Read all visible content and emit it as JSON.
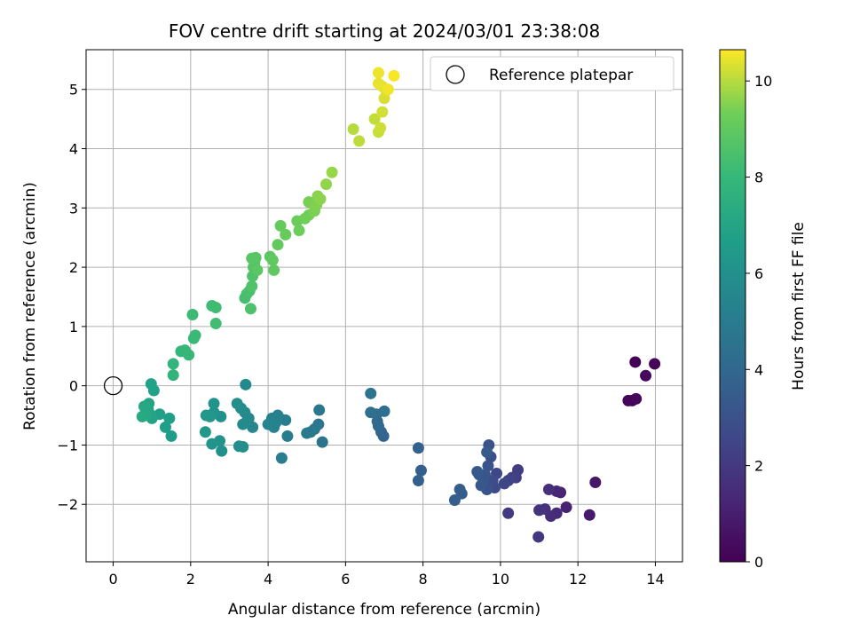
{
  "chart_data": {
    "type": "scatter",
    "title": "FOV centre drift starting at 2024/03/01 23:38:08",
    "xlabel": "Angular distance from reference (arcmin)",
    "ylabel": "Rotation from reference (arcmin)",
    "xlim": [
      -0.7,
      14.7
    ],
    "ylim": [
      -2.97,
      5.67
    ],
    "xticks": [
      0,
      2,
      4,
      6,
      8,
      10,
      12,
      14
    ],
    "yticks": [
      -2,
      -1,
      0,
      1,
      2,
      3,
      4,
      5
    ],
    "xtick_labels": [
      "0",
      "2",
      "4",
      "6",
      "8",
      "10",
      "12",
      "14"
    ],
    "ytick_labels": [
      "−2",
      "−1",
      "0",
      "1",
      "2",
      "3",
      "4",
      "5"
    ],
    "grid": true,
    "legend": {
      "placement": "top-right",
      "entries": [
        "Reference platepar"
      ]
    },
    "reference_point": {
      "name": "Reference platepar",
      "x": 0,
      "y": 0
    },
    "colorbar": {
      "label": "Hours from first FF file",
      "colormap": "viridis",
      "range": [
        0,
        10.65
      ],
      "ticks": [
        0,
        2,
        4,
        6,
        8,
        10
      ],
      "tick_labels": [
        "0",
        "2",
        "4",
        "6",
        "8",
        "10"
      ]
    },
    "points": [
      {
        "x": 13.3,
        "y": -0.25,
        "c": 0.1
      },
      {
        "x": 13.4,
        "y": -0.25,
        "c": 0.15
      },
      {
        "x": 13.5,
        "y": -0.22,
        "c": 0.2
      },
      {
        "x": 13.48,
        "y": 0.4,
        "c": 0.05
      },
      {
        "x": 13.75,
        "y": 0.17,
        "c": 0.25
      },
      {
        "x": 13.98,
        "y": 0.37,
        "c": 0.1
      },
      {
        "x": 12.45,
        "y": -1.63,
        "c": 0.7
      },
      {
        "x": 12.3,
        "y": -2.18,
        "c": 0.9
      },
      {
        "x": 11.7,
        "y": -2.05,
        "c": 1.1
      },
      {
        "x": 11.55,
        "y": -1.8,
        "c": 1.2
      },
      {
        "x": 11.45,
        "y": -1.78,
        "c": 1.3
      },
      {
        "x": 11.45,
        "y": -2.15,
        "c": 1.4
      },
      {
        "x": 11.3,
        "y": -2.2,
        "c": 1.5
      },
      {
        "x": 11.25,
        "y": -1.75,
        "c": 1.6
      },
      {
        "x": 11.15,
        "y": -2.08,
        "c": 1.7
      },
      {
        "x": 11.0,
        "y": -2.1,
        "c": 1.8
      },
      {
        "x": 10.98,
        "y": -2.55,
        "c": 1.9
      },
      {
        "x": 10.2,
        "y": -2.15,
        "c": 2.0
      },
      {
        "x": 10.45,
        "y": -1.42,
        "c": 2.1
      },
      {
        "x": 10.4,
        "y": -1.55,
        "c": 2.2
      },
      {
        "x": 10.3,
        "y": -1.55,
        "c": 2.3
      },
      {
        "x": 10.2,
        "y": -1.6,
        "c": 2.4
      },
      {
        "x": 10.1,
        "y": -1.65,
        "c": 2.5
      },
      {
        "x": 9.9,
        "y": -1.48,
        "c": 2.6
      },
      {
        "x": 9.85,
        "y": -1.72,
        "c": 2.7
      },
      {
        "x": 9.8,
        "y": -1.6,
        "c": 2.8
      },
      {
        "x": 9.75,
        "y": -1.2,
        "c": 2.9
      },
      {
        "x": 9.7,
        "y": -1.0,
        "c": 3.0
      },
      {
        "x": 9.68,
        "y": -1.35,
        "c": 3.05
      },
      {
        "x": 9.65,
        "y": -1.75,
        "c": 3.1
      },
      {
        "x": 9.6,
        "y": -1.5,
        "c": 3.15
      },
      {
        "x": 9.55,
        "y": -1.62,
        "c": 3.2
      },
      {
        "x": 9.5,
        "y": -1.68,
        "c": 3.25
      },
      {
        "x": 9.45,
        "y": -1.5,
        "c": 3.3
      },
      {
        "x": 9.4,
        "y": -1.45,
        "c": 3.35
      },
      {
        "x": 9.65,
        "y": -1.12,
        "c": 3.4
      },
      {
        "x": 9.0,
        "y": -1.82,
        "c": 3.45
      },
      {
        "x": 8.95,
        "y": -1.75,
        "c": 3.5
      },
      {
        "x": 8.82,
        "y": -1.93,
        "c": 3.55
      },
      {
        "x": 7.95,
        "y": -1.43,
        "c": 3.6
      },
      {
        "x": 7.88,
        "y": -1.6,
        "c": 3.65
      },
      {
        "x": 7.88,
        "y": -1.05,
        "c": 3.7
      },
      {
        "x": 6.98,
        "y": -0.85,
        "c": 3.8
      },
      {
        "x": 6.92,
        "y": -0.78,
        "c": 3.9
      },
      {
        "x": 6.85,
        "y": -0.68,
        "c": 4.0
      },
      {
        "x": 6.82,
        "y": -0.6,
        "c": 4.1
      },
      {
        "x": 6.8,
        "y": -0.48,
        "c": 4.2
      },
      {
        "x": 7.0,
        "y": -0.43,
        "c": 4.3
      },
      {
        "x": 6.65,
        "y": -0.45,
        "c": 4.4
      },
      {
        "x": 6.65,
        "y": -0.13,
        "c": 4.5
      },
      {
        "x": 5.4,
        "y": -0.95,
        "c": 4.6
      },
      {
        "x": 5.3,
        "y": -0.65,
        "c": 4.7
      },
      {
        "x": 5.32,
        "y": -0.41,
        "c": 4.75
      },
      {
        "x": 5.2,
        "y": -0.73,
        "c": 4.8
      },
      {
        "x": 5.1,
        "y": -0.78,
        "c": 4.85
      },
      {
        "x": 5.0,
        "y": -0.8,
        "c": 4.9
      },
      {
        "x": 4.5,
        "y": -0.85,
        "c": 5.0
      },
      {
        "x": 4.45,
        "y": -0.58,
        "c": 5.05
      },
      {
        "x": 4.35,
        "y": -1.22,
        "c": 5.1
      },
      {
        "x": 4.3,
        "y": -0.55,
        "c": 5.15
      },
      {
        "x": 4.25,
        "y": -0.5,
        "c": 5.2
      },
      {
        "x": 4.2,
        "y": -0.62,
        "c": 5.25
      },
      {
        "x": 4.15,
        "y": -0.7,
        "c": 5.3
      },
      {
        "x": 4.1,
        "y": -0.55,
        "c": 5.35
      },
      {
        "x": 4.0,
        "y": -0.65,
        "c": 5.4
      },
      {
        "x": 3.6,
        "y": -0.7,
        "c": 5.5
      },
      {
        "x": 3.5,
        "y": -0.55,
        "c": 5.55
      },
      {
        "x": 3.45,
        "y": -0.6,
        "c": 5.6
      },
      {
        "x": 3.42,
        "y": 0.02,
        "c": 5.65
      },
      {
        "x": 3.4,
        "y": -0.45,
        "c": 5.7
      },
      {
        "x": 3.35,
        "y": -0.65,
        "c": 5.75
      },
      {
        "x": 3.35,
        "y": -1.03,
        "c": 5.8
      },
      {
        "x": 3.3,
        "y": -0.38,
        "c": 5.85
      },
      {
        "x": 3.25,
        "y": -1.02,
        "c": 5.9
      },
      {
        "x": 3.2,
        "y": -0.3,
        "c": 5.95
      },
      {
        "x": 2.8,
        "y": -1.1,
        "c": 6.0
      },
      {
        "x": 2.78,
        "y": -0.52,
        "c": 6.05
      },
      {
        "x": 2.75,
        "y": -0.93,
        "c": 6.1
      },
      {
        "x": 2.6,
        "y": -0.3,
        "c": 6.15
      },
      {
        "x": 2.6,
        "y": -0.45,
        "c": 6.2
      },
      {
        "x": 2.55,
        "y": -0.98,
        "c": 6.25
      },
      {
        "x": 2.5,
        "y": -0.52,
        "c": 6.3
      },
      {
        "x": 2.4,
        "y": -0.5,
        "c": 6.35
      },
      {
        "x": 2.38,
        "y": -0.78,
        "c": 6.4
      },
      {
        "x": 1.5,
        "y": -0.85,
        "c": 6.6
      },
      {
        "x": 1.45,
        "y": -0.55,
        "c": 6.65
      },
      {
        "x": 1.35,
        "y": -0.7,
        "c": 6.7
      },
      {
        "x": 1.2,
        "y": -0.48,
        "c": 6.75
      },
      {
        "x": 1.05,
        "y": -0.08,
        "c": 6.8
      },
      {
        "x": 1.0,
        "y": -0.55,
        "c": 6.85
      },
      {
        "x": 0.98,
        "y": 0.03,
        "c": 6.9
      },
      {
        "x": 0.95,
        "y": -0.48,
        "c": 6.95
      },
      {
        "x": 0.92,
        "y": -0.3,
        "c": 7.0
      },
      {
        "x": 0.9,
        "y": -0.4,
        "c": 7.05
      },
      {
        "x": 0.85,
        "y": -0.45,
        "c": 7.1
      },
      {
        "x": 0.82,
        "y": -0.5,
        "c": 7.15
      },
      {
        "x": 0.8,
        "y": -0.35,
        "c": 7.2
      },
      {
        "x": 0.75,
        "y": -0.52,
        "c": 7.25
      },
      {
        "x": 1.55,
        "y": 0.18,
        "c": 7.8
      },
      {
        "x": 1.55,
        "y": 0.37,
        "c": 7.85
      },
      {
        "x": 1.75,
        "y": 0.58,
        "c": 7.9
      },
      {
        "x": 1.85,
        "y": 0.6,
        "c": 7.95
      },
      {
        "x": 1.95,
        "y": 0.52,
        "c": 8.0
      },
      {
        "x": 2.08,
        "y": 0.8,
        "c": 8.05
      },
      {
        "x": 2.12,
        "y": 0.85,
        "c": 8.1
      },
      {
        "x": 2.05,
        "y": 1.2,
        "c": 8.15
      },
      {
        "x": 2.55,
        "y": 1.35,
        "c": 8.2
      },
      {
        "x": 2.65,
        "y": 1.32,
        "c": 8.25
      },
      {
        "x": 2.65,
        "y": 1.05,
        "c": 8.3
      },
      {
        "x": 3.4,
        "y": 1.48,
        "c": 8.4
      },
      {
        "x": 3.45,
        "y": 1.55,
        "c": 8.45
      },
      {
        "x": 3.52,
        "y": 1.6,
        "c": 8.5
      },
      {
        "x": 3.55,
        "y": 1.3,
        "c": 8.55
      },
      {
        "x": 3.58,
        "y": 1.68,
        "c": 8.6
      },
      {
        "x": 3.6,
        "y": 1.85,
        "c": 8.65
      },
      {
        "x": 3.62,
        "y": 2.0,
        "c": 8.7
      },
      {
        "x": 3.65,
        "y": 2.08,
        "c": 8.75
      },
      {
        "x": 3.68,
        "y": 2.16,
        "c": 8.8
      },
      {
        "x": 3.58,
        "y": 2.15,
        "c": 8.82
      },
      {
        "x": 3.72,
        "y": 1.95,
        "c": 8.85
      },
      {
        "x": 4.05,
        "y": 2.18,
        "c": 8.9
      },
      {
        "x": 4.12,
        "y": 2.12,
        "c": 8.95
      },
      {
        "x": 4.15,
        "y": 1.95,
        "c": 9.0
      },
      {
        "x": 4.25,
        "y": 2.38,
        "c": 9.05
      },
      {
        "x": 4.32,
        "y": 2.7,
        "c": 9.1
      },
      {
        "x": 4.45,
        "y": 2.55,
        "c": 9.15
      },
      {
        "x": 4.75,
        "y": 2.78,
        "c": 9.2
      },
      {
        "x": 4.8,
        "y": 2.62,
        "c": 9.25
      },
      {
        "x": 4.95,
        "y": 2.82,
        "c": 9.3
      },
      {
        "x": 5.05,
        "y": 2.88,
        "c": 9.35
      },
      {
        "x": 5.05,
        "y": 3.1,
        "c": 9.4
      },
      {
        "x": 5.2,
        "y": 2.95,
        "c": 9.45
      },
      {
        "x": 5.25,
        "y": 3.05,
        "c": 9.5
      },
      {
        "x": 5.28,
        "y": 3.2,
        "c": 9.55
      },
      {
        "x": 5.35,
        "y": 3.15,
        "c": 9.6
      },
      {
        "x": 5.5,
        "y": 3.4,
        "c": 9.65
      },
      {
        "x": 5.65,
        "y": 3.6,
        "c": 9.7
      },
      {
        "x": 6.2,
        "y": 4.33,
        "c": 10.0
      },
      {
        "x": 6.35,
        "y": 4.13,
        "c": 10.05
      },
      {
        "x": 6.75,
        "y": 4.5,
        "c": 10.1
      },
      {
        "x": 6.85,
        "y": 4.28,
        "c": 10.15
      },
      {
        "x": 6.9,
        "y": 4.35,
        "c": 10.2
      },
      {
        "x": 6.95,
        "y": 4.62,
        "c": 10.25
      },
      {
        "x": 7.0,
        "y": 4.85,
        "c": 10.3
      },
      {
        "x": 7.05,
        "y": 4.98,
        "c": 10.35
      },
      {
        "x": 6.95,
        "y": 5.05,
        "c": 10.4
      },
      {
        "x": 6.85,
        "y": 5.1,
        "c": 10.45
      },
      {
        "x": 6.85,
        "y": 5.28,
        "c": 10.5
      },
      {
        "x": 7.1,
        "y": 5.0,
        "c": 10.55
      },
      {
        "x": 7.25,
        "y": 5.23,
        "c": 10.6
      }
    ]
  }
}
